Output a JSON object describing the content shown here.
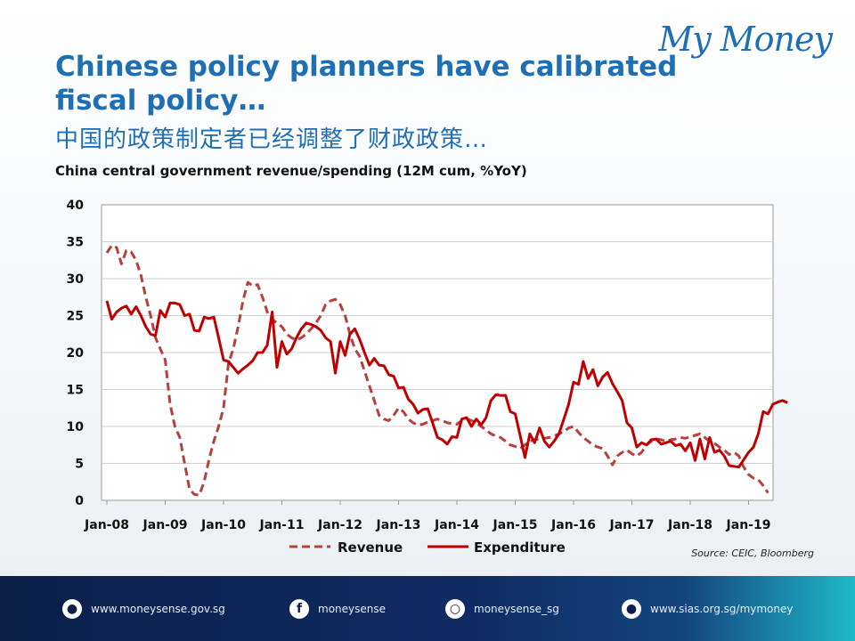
{
  "brand": {
    "logo_text": "My Money"
  },
  "header": {
    "title": "Chinese policy planners have calibrated fiscal policy…",
    "subtitle_cn": "中国的政策制定者已经调整了财政政策…"
  },
  "footer": {
    "items": [
      {
        "icon": "globe-icon",
        "text": "www.moneysense.gov.sg"
      },
      {
        "icon": "facebook-icon",
        "text": "moneysense"
      },
      {
        "icon": "instagram-icon",
        "text": "moneysense_sg"
      },
      {
        "icon": "globe-icon",
        "text": "www.sias.org.sg/mymoney"
      }
    ]
  },
  "source": "Source: CEIC, Bloomberg",
  "chart_data": {
    "type": "line",
    "title": "China central government  revenue/spending (12M cum, %YoY)",
    "xlabel": "",
    "ylabel": "",
    "ylim": [
      0,
      40
    ],
    "yticks": [
      "0",
      "5",
      "10",
      "15",
      "20",
      "25",
      "30",
      "35",
      "40"
    ],
    "xticks": [
      "Jan-08",
      "Jan-09",
      "Jan-10",
      "Jan-11",
      "Jan-12",
      "Jan-13",
      "Jan-14",
      "Jan-15",
      "Jan-16",
      "Jan-17",
      "Jan-18",
      "Jan-19"
    ],
    "x_start": "Jan-08",
    "x_step": "month",
    "grid": "horizontal",
    "legend_position": "bottom",
    "colors": {
      "Revenue": "#b5413f",
      "Expenditure": "#c00000"
    },
    "series": [
      {
        "name": "Revenue",
        "style": "dashed",
        "values": [
          33.5,
          34.5,
          34.2,
          32.0,
          33.8,
          33.6,
          32.5,
          30.5,
          27.5,
          25.0,
          22.0,
          20.5,
          19.0,
          13.0,
          10.0,
          8.5,
          5.0,
          1.5,
          0.8,
          0.7,
          2.5,
          5.5,
          8.0,
          10.0,
          12.5,
          18.5,
          20.5,
          23.5,
          27.0,
          29.5,
          29.0,
          29.2,
          27.5,
          25.5,
          24.5,
          24.0,
          23.5,
          22.5,
          22.0,
          21.7,
          22.0,
          22.5,
          23.2,
          24.0,
          25.0,
          26.5,
          27.0,
          27.2,
          26.5,
          25.0,
          22.5,
          20.5,
          19.5,
          17.5,
          15.5,
          13.5,
          11.5,
          11.0,
          10.8,
          11.5,
          12.5,
          12.0,
          11.0,
          10.5,
          10.2,
          10.3,
          10.6,
          10.8,
          11.0,
          10.8,
          10.5,
          10.4,
          10.3,
          10.8,
          11.0,
          10.8,
          10.5,
          10.0,
          9.5,
          9.0,
          8.7,
          8.5,
          8.0,
          7.5,
          7.3,
          7.0,
          7.5,
          8.0,
          8.2,
          8.3,
          8.4,
          8.5,
          8.7,
          9.0,
          9.3,
          9.8,
          10.0,
          9.2,
          8.5,
          8.0,
          7.5,
          7.2,
          7.0,
          6.0,
          4.8,
          6.0,
          6.5,
          6.8,
          6.3,
          6.0,
          6.5,
          7.5,
          8.0,
          8.3,
          8.2,
          8.0,
          8.2,
          8.3,
          8.5,
          8.4,
          8.6,
          8.8,
          9.0,
          8.5,
          8.0,
          7.7,
          7.2,
          6.8,
          6.2,
          6.5,
          6.0,
          4.5,
          3.5,
          3.0,
          2.8,
          2.0,
          1.0
        ]
      },
      {
        "name": "Expenditure",
        "style": "solid",
        "values": [
          27.0,
          24.5,
          25.5,
          26.0,
          26.3,
          25.2,
          26.2,
          25.0,
          23.5,
          22.5,
          22.3,
          25.7,
          24.8,
          26.7,
          26.7,
          26.5,
          25.0,
          25.2,
          23.0,
          22.9,
          24.8,
          24.6,
          24.8,
          22.0,
          19.0,
          18.8,
          18.0,
          17.2,
          17.8,
          18.3,
          18.9,
          20.0,
          20.0,
          21.0,
          25.5,
          18.0,
          21.5,
          19.8,
          20.5,
          22.0,
          23.2,
          24.0,
          23.8,
          23.5,
          23.0,
          22.0,
          21.5,
          17.2,
          21.5,
          19.6,
          22.5,
          23.2,
          21.8,
          20.0,
          18.3,
          19.2,
          18.3,
          18.2,
          17.0,
          16.8,
          15.2,
          15.3,
          13.7,
          13.0,
          11.8,
          12.3,
          12.4,
          10.5,
          8.5,
          8.2,
          7.6,
          8.6,
          8.5,
          11.0,
          11.2,
          10.0,
          11.0,
          10.2,
          11.2,
          13.5,
          14.3,
          14.2,
          14.2,
          12.0,
          11.7,
          8.8,
          5.8,
          9.0,
          7.8,
          9.8,
          8.0,
          7.2,
          8.0,
          9.0,
          11.0,
          13.0,
          16.0,
          15.7,
          18.8,
          16.5,
          17.7,
          15.5,
          16.7,
          17.3,
          15.8,
          14.7,
          13.5,
          10.5,
          9.8,
          7.2,
          7.8,
          7.5,
          8.2,
          8.3,
          7.6,
          7.8,
          8.0,
          7.4,
          7.6,
          6.7,
          7.8,
          5.4,
          8.3,
          5.6,
          8.5,
          6.5,
          6.8,
          6.0,
          4.7,
          4.6,
          4.5,
          5.5,
          6.5,
          7.2,
          9.0,
          12.0,
          11.7,
          13.0,
          13.3,
          13.5,
          13.2
        ]
      }
    ]
  }
}
